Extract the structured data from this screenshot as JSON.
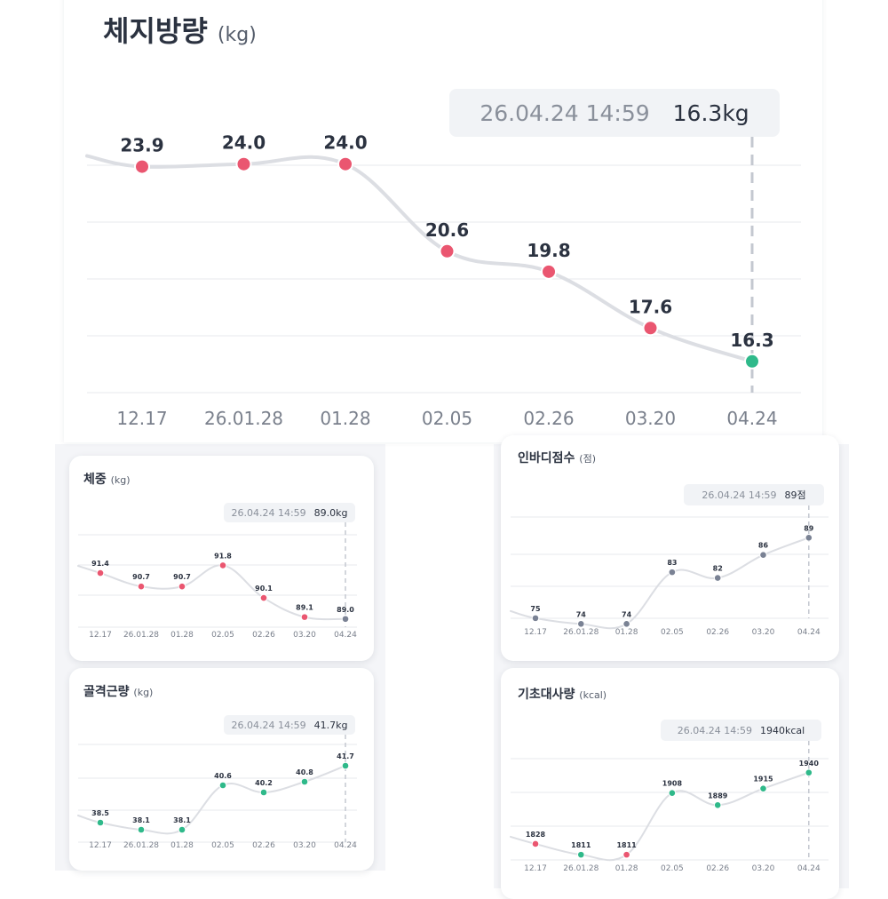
{
  "charts": {
    "body_fat": {
      "title": "체지방량",
      "unit": "(kg)",
      "tooltip_date": "26.04.24 14:59",
      "tooltip_value": "16.3kg"
    },
    "weight": {
      "title": "체중",
      "unit": "(kg)",
      "tooltip_date": "26.04.24 14:59",
      "tooltip_value": "89.0kg"
    },
    "inbody_score": {
      "title": "인바디점수",
      "unit": "(점)",
      "tooltip_date": "26.04.24 14:59",
      "tooltip_value": "89점"
    },
    "skeletal_muscle": {
      "title": "골격근량",
      "unit": "(kg)",
      "tooltip_date": "26.04.24 14:59",
      "tooltip_value": "41.7kg"
    },
    "bmr": {
      "title": "기초대사량",
      "unit": "(kcal)",
      "tooltip_date": "26.04.24 14:59",
      "tooltip_value": "1940kcal"
    }
  },
  "chart_data": [
    {
      "id": "body_fat",
      "type": "line",
      "title": "체지방량 (kg)",
      "categories": [
        "12.17",
        "26.01.28",
        "01.28",
        "02.05",
        "02.26",
        "03.20",
        "04.24"
      ],
      "values": [
        23.9,
        24.0,
        24.0,
        20.6,
        19.8,
        17.6,
        16.3
      ],
      "labels": [
        "23.9",
        "24.0",
        "24.0",
        "20.6",
        "19.8",
        "17.6",
        "16.3"
      ],
      "point_colors": [
        "#ea5670",
        "#ea5670",
        "#ea5670",
        "#ea5670",
        "#ea5670",
        "#ea5670",
        "#2fb98a"
      ],
      "ylim": [
        15.6,
        26.0
      ],
      "grid": true
    },
    {
      "id": "weight",
      "type": "line",
      "title": "체중 (kg)",
      "categories": [
        "12.17",
        "26.01.28",
        "01.28",
        "02.05",
        "02.26",
        "03.20",
        "04.24"
      ],
      "values": [
        91.4,
        90.7,
        90.7,
        91.8,
        90.1,
        89.1,
        89.0
      ],
      "labels": [
        "91.4",
        "90.7",
        "90.7",
        "91.8",
        "90.1",
        "89.1",
        "89.0"
      ],
      "point_colors": [
        "#ea5670",
        "#ea5670",
        "#ea5670",
        "#ea5670",
        "#ea5670",
        "#ea5670",
        "#7a8294"
      ],
      "ylim": [
        88.2,
        93.4
      ],
      "grid": true
    },
    {
      "id": "inbody_score",
      "type": "line",
      "title": "인바디점수 (점)",
      "categories": [
        "12.17",
        "26.01.28",
        "01.28",
        "02.05",
        "02.26",
        "03.20",
        "04.24"
      ],
      "values": [
        75,
        74,
        74,
        83,
        82,
        86,
        89
      ],
      "labels": [
        "75",
        "74",
        "74",
        "83",
        "82",
        "86",
        "89"
      ],
      "point_colors": [
        "#7a8294",
        "#7a8294",
        "#7a8294",
        "#7a8294",
        "#7a8294",
        "#7a8294",
        "#7a8294"
      ],
      "ylim": [
        72.2,
        92.6
      ],
      "grid": true
    },
    {
      "id": "skeletal_muscle",
      "type": "line",
      "title": "골격근량 (kg)",
      "categories": [
        "12.17",
        "26.01.28",
        "01.28",
        "02.05",
        "02.26",
        "03.20",
        "04.24"
      ],
      "values": [
        38.5,
        38.1,
        38.1,
        40.6,
        40.2,
        40.8,
        41.7
      ],
      "labels": [
        "38.5",
        "38.1",
        "38.1",
        "40.6",
        "40.2",
        "40.8",
        "41.7"
      ],
      "point_colors": [
        "#2fb98a",
        "#2fb98a",
        "#2fb98a",
        "#2fb98a",
        "#2fb98a",
        "#2fb98a",
        "#2fb98a"
      ],
      "ylim": [
        37.3,
        42.9
      ],
      "grid": true
    },
    {
      "id": "bmr",
      "type": "line",
      "title": "기초대사량 (kcal)",
      "categories": [
        "12.17",
        "26.01.28",
        "01.28",
        "02.05",
        "02.26",
        "03.20",
        "04.24"
      ],
      "values": [
        1828,
        1811,
        1811,
        1908,
        1889,
        1915,
        1940
      ],
      "labels": [
        "1828",
        "1811",
        "1811",
        "1908",
        "1889",
        "1915",
        "1940"
      ],
      "point_colors": [
        "#ea5670",
        "#2fb98a",
        "#ea5670",
        "#2fb98a",
        "#2fb98a",
        "#2fb98a",
        "#2fb98a"
      ],
      "ylim": [
        1800,
        1962
      ],
      "grid": true
    }
  ]
}
